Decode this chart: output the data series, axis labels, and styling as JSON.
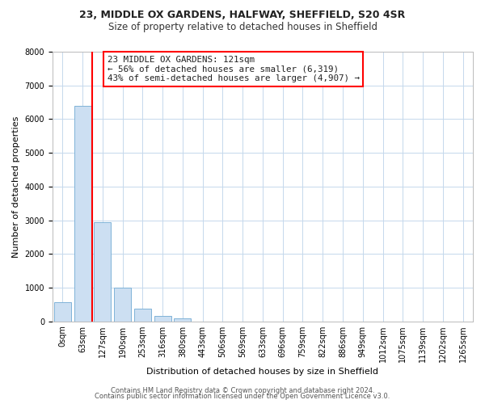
{
  "title1": "23, MIDDLE OX GARDENS, HALFWAY, SHEFFIELD, S20 4SR",
  "title2": "Size of property relative to detached houses in Sheffield",
  "xlabel": "Distribution of detached houses by size in Sheffield",
  "ylabel": "Number of detached properties",
  "bar_labels": [
    "0sqm",
    "63sqm",
    "127sqm",
    "190sqm",
    "253sqm",
    "316sqm",
    "380sqm",
    "443sqm",
    "506sqm",
    "569sqm",
    "633sqm",
    "696sqm",
    "759sqm",
    "822sqm",
    "886sqm",
    "949sqm",
    "1012sqm",
    "1075sqm",
    "1139sqm",
    "1202sqm",
    "1265sqm"
  ],
  "bar_values": [
    560,
    6390,
    2930,
    1000,
    380,
    160,
    80,
    0,
    0,
    0,
    0,
    0,
    0,
    0,
    0,
    0,
    0,
    0,
    0,
    0,
    0
  ],
  "bar_color": "#ccdff2",
  "bar_edge_color": "#7fb3d8",
  "property_line_color": "red",
  "property_line_x": 1.5,
  "annotation_text": "23 MIDDLE OX GARDENS: 121sqm\n← 56% of detached houses are smaller (6,319)\n43% of semi-detached houses are larger (4,907) →",
  "annotation_box_color": "white",
  "annotation_box_edge": "red",
  "ylim": [
    0,
    8000
  ],
  "yticks": [
    0,
    1000,
    2000,
    3000,
    4000,
    5000,
    6000,
    7000,
    8000
  ],
  "footer1": "Contains HM Land Registry data © Crown copyright and database right 2024.",
  "footer2": "Contains public sector information licensed under the Open Government Licence v3.0.",
  "bg_color": "#ffffff",
  "grid_color": "#c5d8ec",
  "title1_fontsize": 9,
  "title2_fontsize": 8.5,
  "xlabel_fontsize": 8,
  "ylabel_fontsize": 8,
  "tick_fontsize": 7,
  "footer_fontsize": 6
}
